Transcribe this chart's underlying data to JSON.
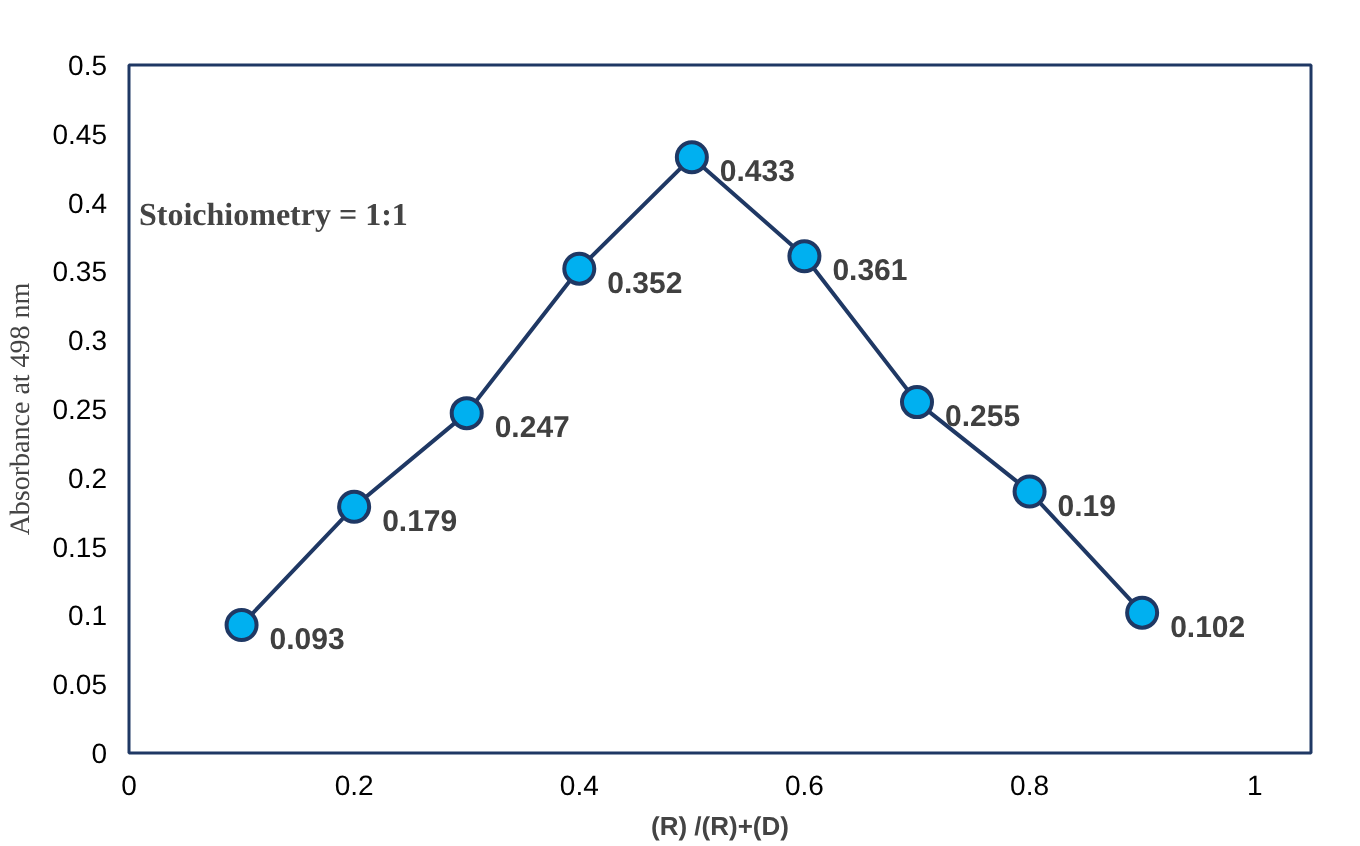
{
  "chart_data": {
    "type": "line",
    "xlabel": "(R) /(R)+(D)",
    "ylabel": "Absorbance at 498 nm",
    "x": [
      0.1,
      0.2,
      0.3,
      0.4,
      0.5,
      0.6,
      0.7,
      0.8,
      0.9
    ],
    "series": [
      {
        "color": "#1f3864",
        "values": [
          0.093,
          0.179,
          0.247,
          0.352,
          0.433,
          0.361,
          0.255,
          0.19,
          0.102
        ]
      }
    ],
    "marker": "circle",
    "data_labels": true,
    "grid": false,
    "xlim": [
      0,
      1.05
    ],
    "xticks": [
      0,
      0.2,
      0.4,
      0.6,
      0.8,
      1
    ],
    "ylim": [
      0,
      0.5
    ],
    "yticks": [
      0,
      0.05,
      0.1,
      0.15,
      0.2,
      0.25,
      0.3,
      0.35,
      0.4,
      0.45,
      0.5
    ],
    "annotations": [
      "Stoichiometry = 1:1"
    ]
  }
}
